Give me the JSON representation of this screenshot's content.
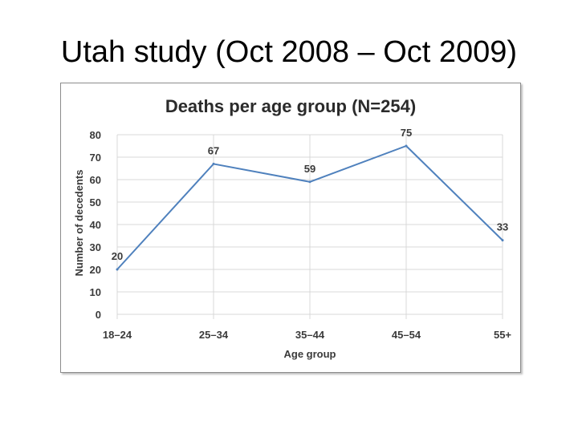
{
  "slide": {
    "title": "Utah study (Oct 2008 – Oct 2009)"
  },
  "chart_data": {
    "type": "line",
    "title": "Deaths per age group (N=254)",
    "xlabel": "Age group",
    "ylabel": "Number of decedents",
    "categories": [
      "18–24",
      "25–34",
      "35–44",
      "45–54",
      "55+"
    ],
    "series": [
      {
        "name": "Deaths",
        "values": [
          20,
          67,
          59,
          75,
          33
        ]
      }
    ],
    "ylim": [
      0,
      80
    ],
    "yticks": [
      "0",
      "10",
      "20",
      "30",
      "40",
      "50",
      "60",
      "70",
      "80"
    ],
    "data_labels": [
      "20",
      "67",
      "59",
      "75",
      "33"
    ],
    "grid": true,
    "legend": "none",
    "line_color": "#4f81bd",
    "grid_color": "#d9d9d9"
  }
}
